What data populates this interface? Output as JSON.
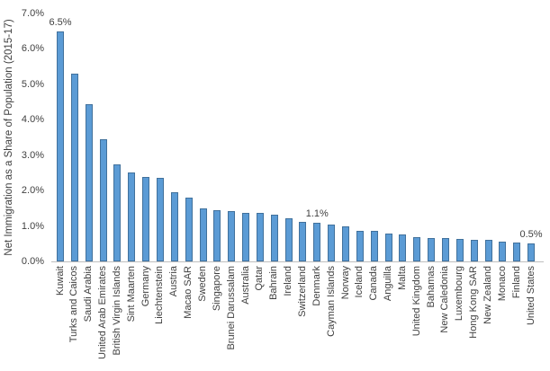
{
  "chart_data": {
    "type": "bar",
    "title": "",
    "xlabel": "",
    "ylabel": "Net Immigration as a Share of Population (2015-17)",
    "ylim": [
      0,
      7
    ],
    "ytick_labels": [
      "0.0%",
      "1.0%",
      "2.0%",
      "3.0%",
      "4.0%",
      "5.0%",
      "6.0%",
      "7.0%"
    ],
    "grid": "off",
    "legend": "none",
    "categories": [
      "Kuwait",
      "Turks and Caicos",
      "Saudi Arabia",
      "United Arab Emirates",
      "British Virgin Islands",
      "Sint Maarten",
      "Germany",
      "Liechtenstein",
      "Austria",
      "Macao SAR",
      "Sweden",
      "Singapore",
      "Brunei Darussalam",
      "Australia",
      "Qatar",
      "Bahrain",
      "Ireland",
      "Switzerland",
      "Denmark",
      "Cayman Islands",
      "Norway",
      "Iceland",
      "Canada",
      "Anguilla",
      "Malta",
      "United Kingdom",
      "Bahamas",
      "New Caledonia",
      "Luxembourg",
      "Hong Kong SAR",
      "New Zealand",
      "Monaco",
      "Finland",
      "United States"
    ],
    "values": [
      6.5,
      5.3,
      4.45,
      3.45,
      2.75,
      2.5,
      2.38,
      2.36,
      1.95,
      1.8,
      1.5,
      1.45,
      1.42,
      1.38,
      1.37,
      1.33,
      1.22,
      1.12,
      1.1,
      1.05,
      1.0,
      0.87,
      0.86,
      0.78,
      0.77,
      0.68,
      0.66,
      0.65,
      0.63,
      0.62,
      0.61,
      0.56,
      0.53,
      0.5
    ],
    "data_labels": [
      {
        "index": 0,
        "category": "Kuwait",
        "text": "6.5%"
      },
      {
        "index": 18,
        "category": "Denmark",
        "text": "1.1%"
      },
      {
        "index": 33,
        "category": "United States",
        "text": "0.5%"
      }
    ],
    "colors": {
      "bar_fill": "#5B9BD5",
      "bar_border": "#41719C",
      "axis_line": "#BFBFBF",
      "text": "#3F3F3F"
    }
  }
}
